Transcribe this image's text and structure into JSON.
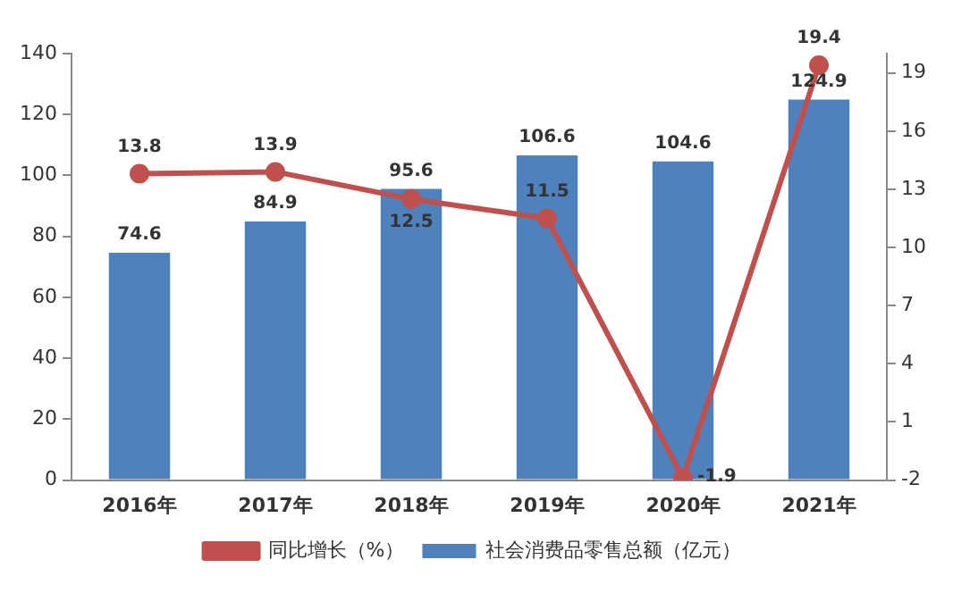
{
  "chart_data": {
    "type": "bar",
    "categories": [
      "2016年",
      "2017年",
      "2018年",
      "2019年",
      "2020年",
      "2021年"
    ],
    "series": [
      {
        "name": "社会消费品零售总额（亿元）",
        "color": "#4f81bd",
        "values": [
          74.6,
          84.9,
          95.6,
          106.6,
          104.6,
          124.9
        ]
      },
      {
        "name": "同比增长（%）",
        "type": "line",
        "axis": "y2",
        "color": "#c0504d",
        "values": [
          13.8,
          13.9,
          12.5,
          11.5,
          -1.9,
          19.4
        ]
      }
    ],
    "ylim": [
      0,
      140
    ],
    "yticks": [
      0,
      20,
      40,
      60,
      80,
      100,
      120,
      140
    ],
    "y2lim": [
      -2,
      20
    ],
    "y2ticks": [
      -2,
      1,
      4,
      7,
      10,
      13,
      16,
      19
    ],
    "grid": false,
    "legend": "bottom",
    "marker": "circle",
    "line_style": "solid",
    "data_labels": true
  }
}
